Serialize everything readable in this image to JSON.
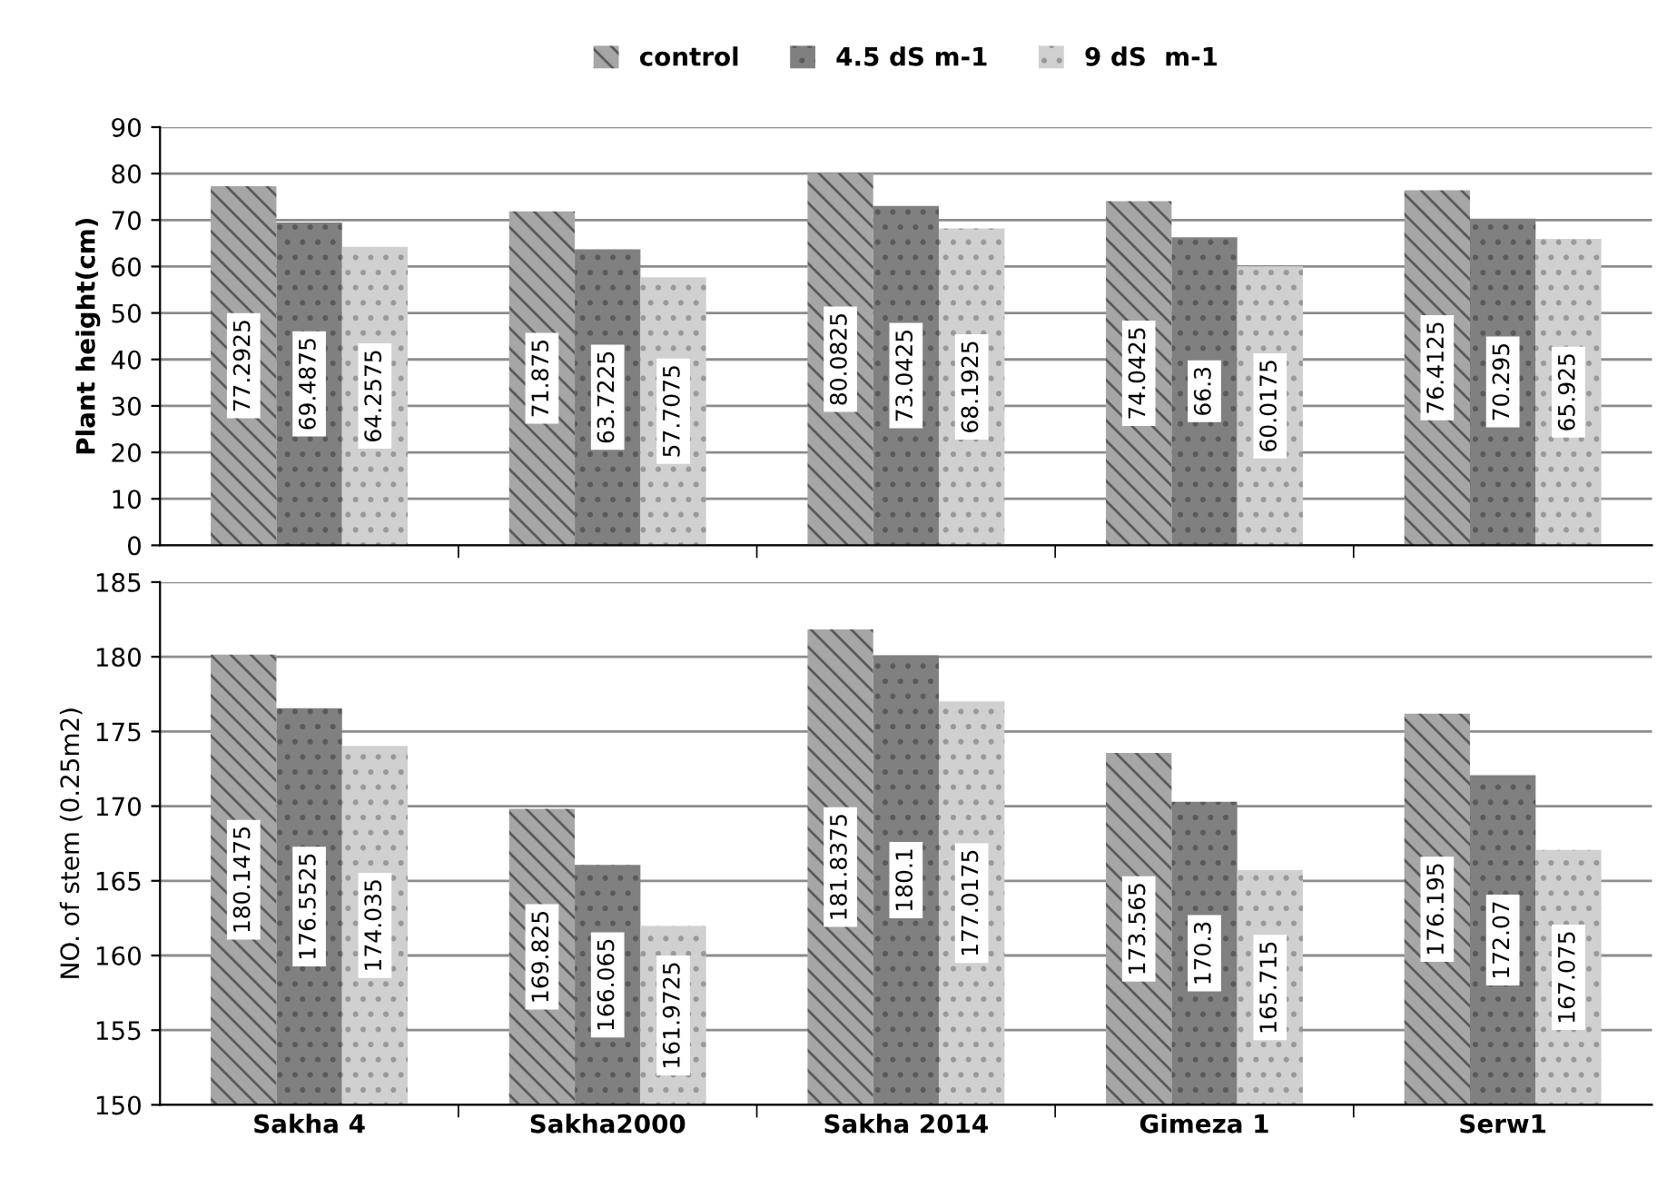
{
  "chart_data": [
    {
      "type": "bar",
      "ylabel": "Plant height(cm)",
      "categories": [
        null,
        null,
        null,
        null,
        null
      ],
      "ylim": [
        0,
        90
      ],
      "yticks": [
        0,
        10,
        20,
        30,
        40,
        50,
        60,
        70,
        80,
        90
      ],
      "grid": "y",
      "legend": "top",
      "data_labels": true,
      "tick_labels": "y",
      "series": [
        {
          "name": "control",
          "color": "#a6a6a6",
          "values": [
            77.2925,
            71.875,
            80.0825,
            74.0425,
            76.4125
          ]
        },
        {
          "name": "4.5 dS m-1",
          "color": "#808080",
          "values": [
            69.4875,
            63.7225,
            73.0425,
            66.3,
            70.295
          ]
        },
        {
          "name": "9 dS  m-1",
          "color": "#d0d0d0",
          "values": [
            64.2575,
            57.7075,
            68.1925,
            60.0175,
            65.925
          ]
        }
      ]
    },
    {
      "type": "bar",
      "ylabel": "NO. of stem (0.25m2)",
      "categories": [
        "Sakha 4",
        "Sakha2000",
        "Sakha 2014",
        "Gimeza 1",
        "Serw1"
      ],
      "ylim": [
        150,
        185
      ],
      "yticks": [
        150,
        155,
        160,
        165,
        170,
        175,
        180,
        185
      ],
      "grid": "y",
      "data_labels": true,
      "series": [
        {
          "color": "#a6a6a6",
          "values": [
            180.1475,
            169.825,
            181.8375,
            173.565,
            176.195
          ]
        },
        {
          "color": "#808080",
          "values": [
            176.5525,
            166.065,
            180.1,
            170.3,
            172.07
          ]
        },
        {
          "color": "#d0d0d0",
          "values": [
            174.035,
            161.9725,
            177.0175,
            165.715,
            167.075
          ]
        }
      ]
    }
  ]
}
